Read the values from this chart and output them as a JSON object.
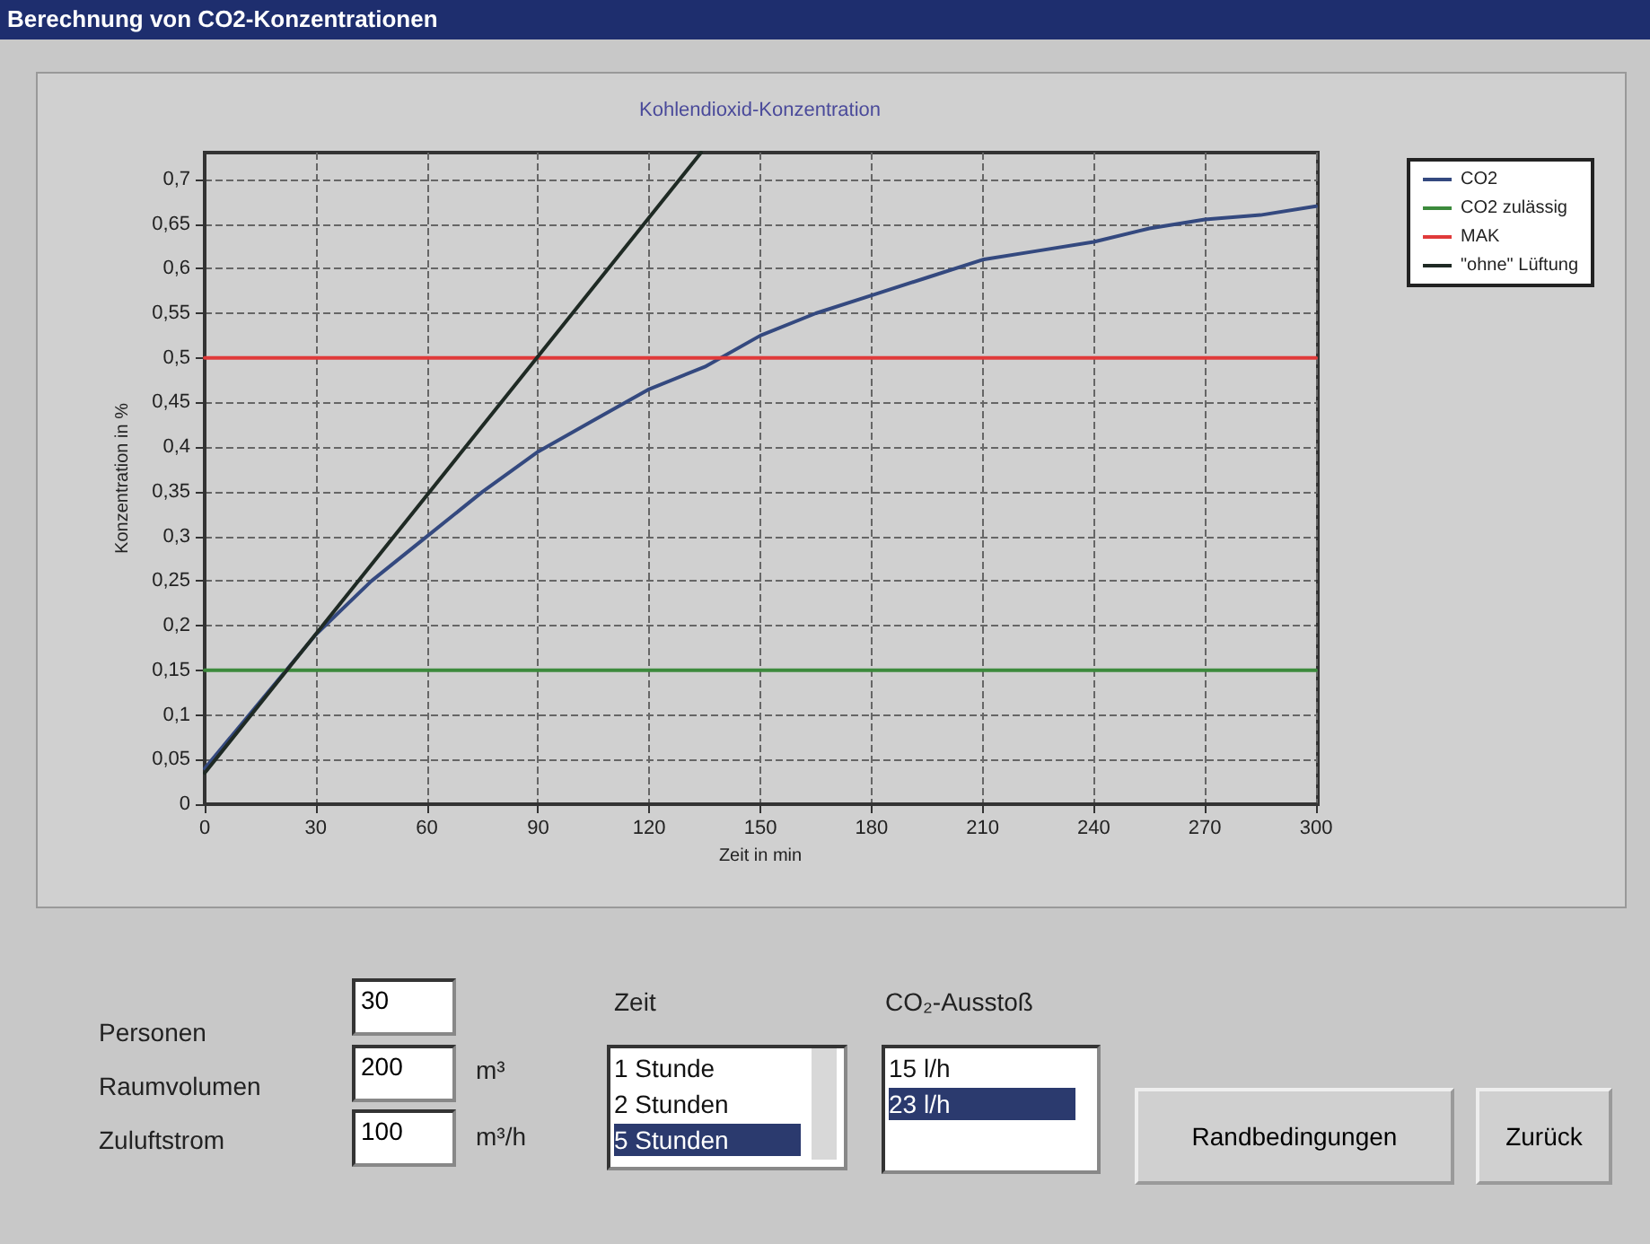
{
  "chart_data": {
    "type": "line",
    "title": "Berechnung von CO2-Konzentrationen",
    "subtitle": "Kohlendioxid-Konzentration",
    "xlabel": "Zeit in min",
    "ylabel": "Konzentration in %",
    "xlim": [
      0,
      300
    ],
    "xticks": [
      0,
      30,
      60,
      90,
      120,
      150,
      180,
      210,
      240,
      270,
      300
    ],
    "ylim": [
      0,
      0.73
    ],
    "yticks": [
      0,
      {
        "value": 0.05,
        "label": "0,05"
      },
      {
        "value": 0.1,
        "label": "0,1"
      },
      {
        "value": 0.15,
        "label": "0,15"
      },
      {
        "value": 0.2,
        "label": "0,2"
      },
      {
        "value": 0.25,
        "label": "0,25"
      },
      {
        "value": 0.3,
        "label": "0,3"
      },
      {
        "value": 0.35,
        "label": "0,35"
      },
      {
        "value": 0.4,
        "label": "0,4"
      },
      {
        "value": 0.45,
        "label": "0,45"
      },
      {
        "value": 0.5,
        "label": "0,5"
      },
      {
        "value": 0.55,
        "label": "0,55"
      },
      {
        "value": 0.6,
        "label": "0,6"
      },
      {
        "value": 0.65,
        "label": "0,65"
      },
      {
        "value": 0.7,
        "label": "0,7"
      }
    ],
    "grid": true,
    "legend": "top right",
    "marker": "none",
    "line_style": "solid",
    "series": [
      {
        "name": "CO2",
        "color": "#34497f",
        "x": [
          0,
          10,
          20,
          30,
          45,
          60,
          75,
          90,
          105,
          120,
          135,
          150,
          165,
          180,
          195,
          210,
          225,
          240,
          255,
          270,
          285,
          300
        ],
        "values": [
          0.04,
          0.09,
          0.14,
          0.19,
          0.25,
          0.3,
          0.35,
          0.395,
          0.43,
          0.465,
          0.49,
          0.525,
          0.55,
          0.57,
          0.59,
          0.61,
          0.62,
          0.63,
          0.645,
          0.655,
          0.66,
          0.67
        ]
      },
      {
        "name": "CO2 zulässig",
        "color": "#3c8a3c",
        "x": [
          0,
          300
        ],
        "values": [
          0.15,
          0.15
        ]
      },
      {
        "name": "MAK",
        "color": "#e03a3a",
        "x": [
          0,
          300
        ],
        "values": [
          0.5,
          0.5
        ]
      },
      {
        "name": "\"ohne\" Lüftung",
        "color": "#1f2a24",
        "x": [
          0,
          134
        ],
        "values": [
          0.035,
          0.73
        ]
      }
    ],
    "annotations": [
      "Personen",
      "30",
      "Raumvolumen",
      "200",
      "m³",
      "Zuluftstrom",
      "100",
      "m³/h",
      "Zeit",
      "1 Stunde",
      "2 Stunden",
      "5 Stunden",
      "CO₂-Ausstoß",
      "15 l/h",
      "23 l/h",
      "Randbedingungen",
      "Zurück"
    ]
  }
}
